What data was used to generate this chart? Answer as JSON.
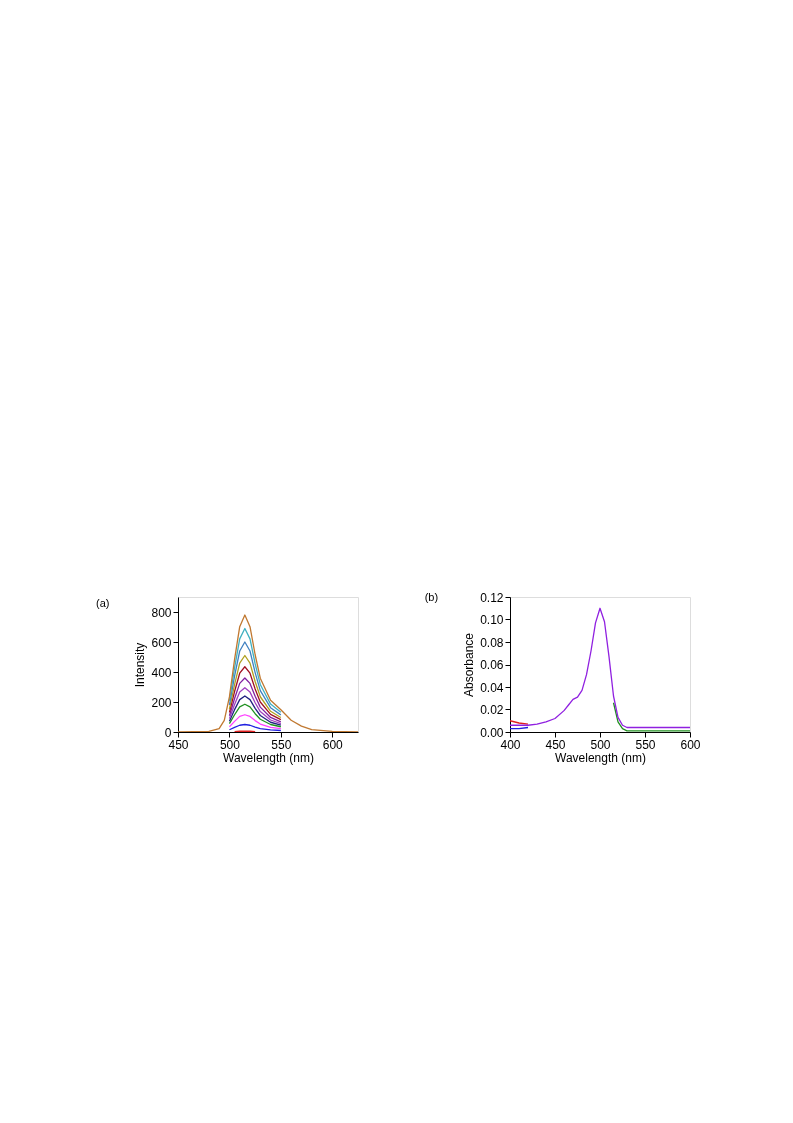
{
  "chart_data": [
    {
      "type": "line",
      "title": "(a)",
      "xlabel": "Wavelength (nm)",
      "ylabel": "Intensity",
      "x": [
        450,
        480,
        490,
        495,
        500,
        505,
        510,
        515,
        520,
        525,
        530,
        540,
        550,
        560,
        570,
        580,
        600,
        625
      ],
      "xlim": [
        450,
        625
      ],
      "xticks": [
        450,
        500,
        550,
        600
      ],
      "ylim": [
        0,
        900
      ],
      "yticks": [
        0,
        200,
        400,
        600,
        800
      ],
      "series": [
        {
          "color": "#c07830",
          "values": [
            0,
            4,
            23,
            78,
            234,
            484,
            702,
            780,
            702,
            515,
            359,
            211,
            148,
            78,
            39,
            16,
            4,
            0
          ]
        },
        {
          "color": "#40b0c0",
          "x": [
            500,
            505,
            510,
            515,
            520,
            525,
            530,
            540,
            550
          ],
          "values": [
            207,
            428,
            621,
            690,
            621,
            455,
            317,
            186,
            131
          ]
        },
        {
          "color": "#4080c0",
          "x": [
            500,
            505,
            510,
            515,
            520,
            525,
            530,
            540,
            550
          ],
          "values": [
            180,
            372,
            540,
            600,
            540,
            396,
            276,
            162,
            114
          ]
        },
        {
          "color": "#b0a020",
          "x": [
            500,
            505,
            510,
            515,
            520,
            525,
            530,
            540,
            550
          ],
          "values": [
            153,
            316,
            459,
            510,
            459,
            337,
            235,
            138,
            97
          ]
        },
        {
          "color": "#a01020",
          "x": [
            500,
            505,
            510,
            515,
            520,
            525,
            530,
            540,
            550
          ],
          "values": [
            131,
            270,
            392,
            435,
            392,
            287,
            200,
            117,
            83
          ]
        },
        {
          "color": "#8020a0",
          "x": [
            500,
            505,
            510,
            515,
            520,
            525,
            530,
            540,
            550
          ],
          "values": [
            108,
            223,
            324,
            360,
            324,
            238,
            166,
            97,
            68
          ]
        },
        {
          "color": "#a040c0",
          "x": [
            500,
            505,
            510,
            515,
            520,
            525,
            530,
            540,
            550
          ],
          "values": [
            89,
            183,
            266,
            295,
            266,
            195,
            136,
            80,
            56
          ]
        },
        {
          "color": "#202080",
          "x": [
            500,
            505,
            510,
            515,
            520,
            525,
            530,
            540,
            550
          ],
          "values": [
            72,
            149,
            216,
            240,
            216,
            158,
            110,
            65,
            46
          ]
        },
        {
          "color": "#209020",
          "x": [
            500,
            505,
            510,
            515,
            520,
            525,
            530,
            540,
            550
          ],
          "values": [
            56,
            115,
            167,
            185,
            167,
            122,
            85,
            50,
            35
          ]
        },
        {
          "color": "#ff40ff",
          "x": [
            500,
            505,
            510,
            515,
            520,
            525,
            530,
            540,
            550
          ],
          "values": [
            35,
            71,
            104,
            115,
            104,
            76,
            53,
            31,
            22
          ]
        },
        {
          "color": "#2020e0",
          "x": [
            500,
            505,
            510,
            515,
            520,
            525,
            530,
            540,
            550
          ],
          "values": [
            15,
            31,
            45,
            50,
            45,
            33,
            23,
            14,
            10
          ]
        },
        {
          "color": "#e02020",
          "x": [
            505,
            510,
            515,
            520,
            525
          ],
          "values": [
            3,
            5,
            5,
            5,
            3
          ]
        }
      ]
    },
    {
      "type": "line",
      "title": "(b)",
      "xlabel": "Wavelength (nm)",
      "ylabel": "Absorbance",
      "x": [
        400,
        410,
        420,
        430,
        440,
        450,
        460,
        465,
        470,
        475,
        480,
        485,
        490,
        495,
        500,
        505,
        510,
        515,
        520,
        525,
        530,
        550,
        575,
        600
      ],
      "xlim": [
        400,
        600
      ],
      "xticks": [
        400,
        450,
        500,
        550,
        600
      ],
      "ylim": [
        0,
        0.12
      ],
      "yticks": [
        {
          "value": 0,
          "label": "0.00"
        },
        {
          "value": 0.02,
          "label": "0.02"
        },
        {
          "value": 0.04,
          "label": "0.04"
        },
        {
          "value": 0.06,
          "label": "0.06"
        },
        {
          "value": 0.08,
          "label": "0.08"
        },
        {
          "value": 0.1,
          "label": "0.10"
        },
        {
          "value": 0.12,
          "label": "0.12"
        }
      ],
      "series": [
        {
          "color": "#9020e0",
          "values": [
            0.006,
            0.006,
            0.006,
            0.007,
            0.009,
            0.012,
            0.019,
            0.024,
            0.029,
            0.031,
            0.037,
            0.051,
            0.072,
            0.097,
            0.11,
            0.098,
            0.067,
            0.032,
            0.013,
            0.006,
            0.004,
            0.004,
            0.004,
            0.004
          ]
        },
        {
          "color": "#e02020",
          "x": [
            400,
            410,
            420
          ],
          "values": [
            0.01,
            0.008,
            0.007
          ]
        },
        {
          "color": "#2020e0",
          "x": [
            400,
            410,
            420
          ],
          "values": [
            0.003,
            0.003,
            0.004
          ]
        },
        {
          "color": "#209020",
          "x": [
            515,
            520,
            525,
            530,
            550,
            575,
            600
          ],
          "values": [
            0.026,
            0.009,
            0.003,
            0.001,
            0.001,
            0.001,
            0.001
          ]
        }
      ]
    }
  ]
}
